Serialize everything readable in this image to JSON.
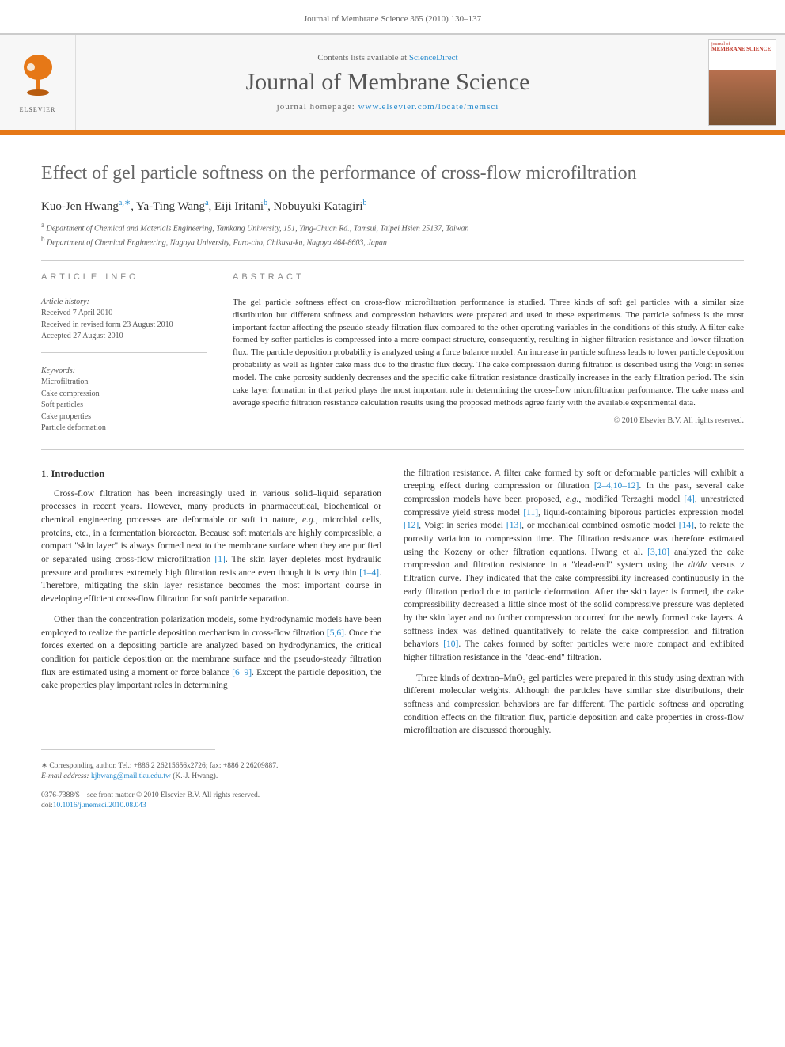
{
  "page_header": "Journal of Membrane Science 365 (2010) 130–137",
  "banner": {
    "contents_prefix": "Contents lists available at ",
    "contents_link": "ScienceDirect",
    "journal_title": "Journal of Membrane Science",
    "homepage_prefix": "journal homepage: ",
    "homepage_link": "www.elsevier.com/locate/memsci",
    "elsevier_label": "ELSEVIER",
    "cover_top": "journal of",
    "cover_title": "MEMBRANE SCIENCE"
  },
  "article": {
    "title": "Effect of gel particle softness on the performance of cross-flow microfiltration",
    "authors_html": "Kuo-Jen Hwang<sup>a,∗</sup>, Ya-Ting Wang<sup>a</sup>, Eiji Iritani<sup>b</sup>, Nobuyuki Katagiri<sup>b</sup>",
    "affiliations": [
      {
        "sup": "a",
        "text": "Department of Chemical and Materials Engineering, Tamkang University, 151, Ying-Chuan Rd., Tamsui, Taipei Hsien 25137, Taiwan"
      },
      {
        "sup": "b",
        "text": "Department of Chemical Engineering, Nagoya University, Furo-cho, Chikusa-ku, Nagoya 464-8603, Japan"
      }
    ]
  },
  "article_info": {
    "heading": "ARTICLE INFO",
    "history_label": "Article history:",
    "history": [
      "Received 7 April 2010",
      "Received in revised form 23 August 2010",
      "Accepted 27 August 2010"
    ],
    "keywords_label": "Keywords:",
    "keywords": [
      "Microfiltration",
      "Cake compression",
      "Soft particles",
      "Cake properties",
      "Particle deformation"
    ]
  },
  "abstract": {
    "heading": "ABSTRACT",
    "text": "The gel particle softness effect on cross-flow microfiltration performance is studied. Three kinds of soft gel particles with a similar size distribution but different softness and compression behaviors were prepared and used in these experiments. The particle softness is the most important factor affecting the pseudo-steady filtration flux compared to the other operating variables in the conditions of this study. A filter cake formed by softer particles is compressed into a more compact structure, consequently, resulting in higher filtration resistance and lower filtration flux. The particle deposition probability is analyzed using a force balance model. An increase in particle softness leads to lower particle deposition probability as well as lighter cake mass due to the drastic flux decay. The cake compression during filtration is described using the Voigt in series model. The cake porosity suddenly decreases and the specific cake filtration resistance drastically increases in the early filtration period. The skin cake layer formation in that period plays the most important role in determining the cross-flow microfiltration performance. The cake mass and average specific filtration resistance calculation results using the proposed methods agree fairly with the available experimental data.",
    "copyright": "© 2010 Elsevier B.V. All rights reserved."
  },
  "body": {
    "section1_heading": "1. Introduction",
    "col1_p1": "Cross-flow filtration has been increasingly used in various solid–liquid separation processes in recent years. However, many products in pharmaceutical, biochemical or chemical engineering processes are deformable or soft in nature, e.g., microbial cells, proteins, etc., in a fermentation bioreactor. Because soft materials are highly compressible, a compact \"skin layer\" is always formed next to the membrane surface when they are purified or separated using cross-flow microfiltration [1]. The skin layer depletes most hydraulic pressure and produces extremely high filtration resistance even though it is very thin [1–4]. Therefore, mitigating the skin layer resistance becomes the most important course in developing efficient cross-flow filtration for soft particle separation.",
    "col1_p2": "Other than the concentration polarization models, some hydrodynamic models have been employed to realize the particle deposition mechanism in cross-flow filtration [5,6]. Once the forces exerted on a depositing particle are analyzed based on hydrodynamics, the critical condition for particle deposition on the membrane surface and the pseudo-steady filtration flux are estimated using a moment or force balance [6–9]. Except the particle deposition, the cake properties play important roles in determining",
    "col2_p1": "the filtration resistance. A filter cake formed by soft or deformable particles will exhibit a creeping effect during compression or filtration [2–4,10–12]. In the past, several cake compression models have been proposed, e.g., modified Terzaghi model [4], unrestricted compressive yield stress model [11], liquid-containing biporous particles expression model [12], Voigt in series model [13], or mechanical combined osmotic model [14], to relate the porosity variation to compression time. The filtration resistance was therefore estimated using the Kozeny or other filtration equations. Hwang et al. [3,10] analyzed the cake compression and filtration resistance in a \"dead-end\" system using the dt/dv versus v filtration curve. They indicated that the cake compressibility increased continuously in the early filtration period due to particle deformation. After the skin layer is formed, the cake compressibility decreased a little since most of the solid compressive pressure was depleted by the skin layer and no further compression occurred for the newly formed cake layers. A softness index was defined quantitatively to relate the cake compression and filtration behaviors [10]. The cakes formed by softer particles were more compact and exhibited higher filtration resistance in the \"dead-end\" filtration.",
    "col2_p2": "Three kinds of dextran–MnO₂ gel particles were prepared in this study using dextran with different molecular weights. Although the particles have similar size distributions, their softness and compression behaviors are far different. The particle softness and operating condition effects on the filtration flux, particle deposition and cake properties in cross-flow microfiltration are discussed thoroughly."
  },
  "footnote": {
    "corr_label": "∗ Corresponding author. Tel.: +886 2 26215656x2726; fax: +886 2 26209887.",
    "email_label": "E-mail address:",
    "email": "kjhwang@mail.tku.edu.tw",
    "email_who": "(K.-J. Hwang)."
  },
  "footer": {
    "issn": "0376-7388/$ – see front matter © 2010 Elsevier B.V. All rights reserved.",
    "doi_label": "doi:",
    "doi": "10.1016/j.memsci.2010.08.043"
  },
  "colors": {
    "accent": "#e67817",
    "link": "#2288cc",
    "text": "#333333",
    "muted": "#666666"
  }
}
